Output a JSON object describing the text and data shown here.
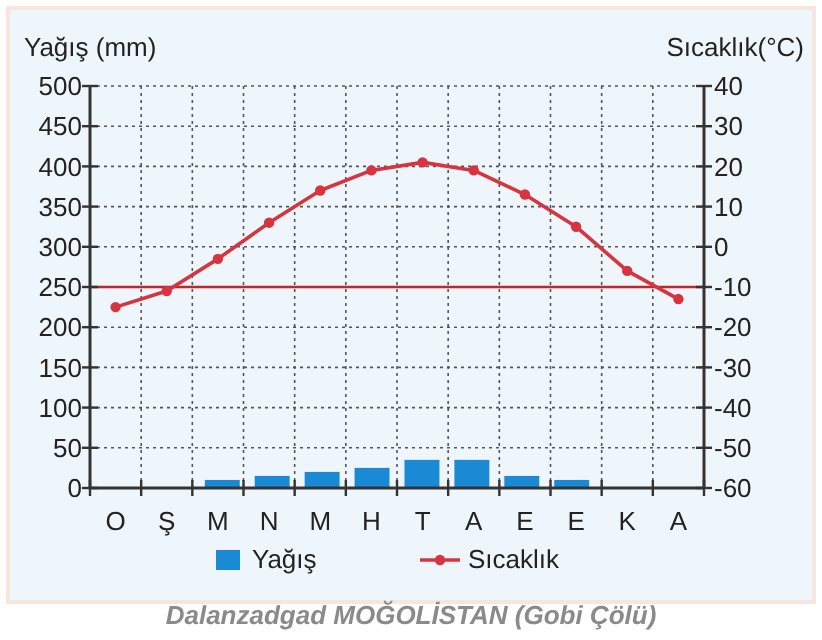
{
  "chart_data": {
    "type": "bar",
    "title": "Dalanzadgad MOĞOLİSTAN (Gobi Çölü)",
    "ylabel": "Yağış (mm)",
    "y2label": "Sıcaklık(°C)",
    "categories": [
      "O",
      "Ş",
      "M",
      "N",
      "M",
      "H",
      "T",
      "A",
      "E",
      "E",
      "K",
      "A"
    ],
    "series": [
      {
        "name": "Yağış",
        "color": "#1a8ad4",
        "values": [
          0,
          0,
          10,
          15,
          20,
          25,
          35,
          35,
          15,
          10,
          0,
          0
        ]
      },
      {
        "name": "Sıcaklık",
        "type": "line",
        "axis": "y2",
        "color": "#d6343f",
        "marker": "circle",
        "values": [
          -15,
          -11,
          -3,
          6,
          14,
          19,
          21,
          19,
          13,
          5,
          -6,
          -13
        ]
      }
    ],
    "ylim": [
      0,
      500
    ],
    "yticks": [
      0,
      50,
      100,
      150,
      200,
      250,
      300,
      350,
      400,
      450,
      500
    ],
    "y2lim": [
      -60,
      40
    ],
    "y2ticks": [
      -60,
      -50,
      -40,
      -30,
      -20,
      -10,
      0,
      10,
      20,
      30,
      40
    ],
    "ref_lines": [
      {
        "axis": "y",
        "value": 250,
        "color": "#c0272d"
      }
    ],
    "grid": true,
    "legend": "bottom"
  }
}
